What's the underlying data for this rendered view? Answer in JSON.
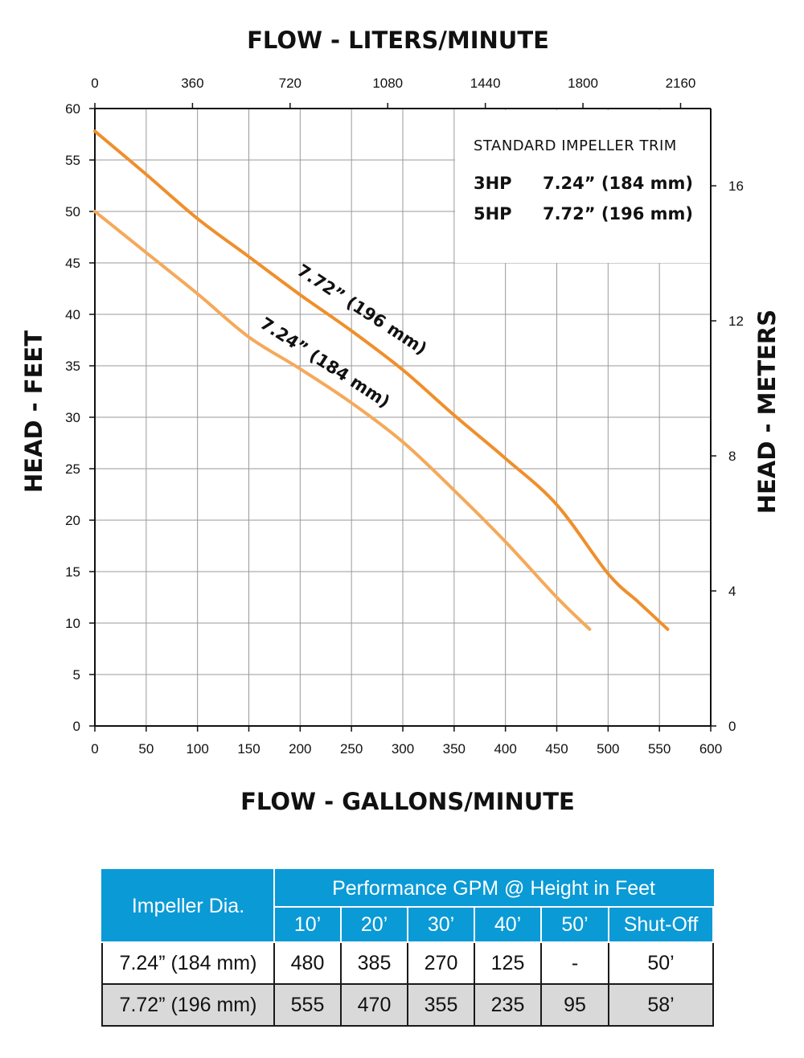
{
  "chart_data": {
    "type": "line",
    "title_top": "FLOW - LITERS/MINUTE",
    "xlabel": "FLOW - GALLONS/MINUTE",
    "ylabel_left": "HEAD - FEET",
    "ylabel_right": "HEAD - METERS",
    "xlim": [
      0,
      600
    ],
    "ylim": [
      0,
      60
    ],
    "x_ticks": [
      "0",
      "50",
      "100",
      "150",
      "200",
      "250",
      "300",
      "350",
      "400",
      "450",
      "500",
      "550",
      "600"
    ],
    "y_ticks": [
      "0",
      "5",
      "10",
      "15",
      "20",
      "25",
      "30",
      "35",
      "40",
      "45",
      "50",
      "55",
      "60"
    ],
    "top_ticks": [
      "0",
      "360",
      "720",
      "1080",
      "1440",
      "1800",
      "2160"
    ],
    "top_tick_values_lpm": [
      0,
      360,
      720,
      1080,
      1440,
      1800,
      2160
    ],
    "right_ticks": [
      "0",
      "4",
      "8",
      "12",
      "16"
    ],
    "right_tick_values_m": [
      0,
      4,
      8,
      12,
      16
    ],
    "grid": true,
    "legend": {
      "title": "STANDARD IMPELLER TRIM",
      "rows": [
        {
          "hp": "3HP",
          "trim": "7.24” (184 mm)"
        },
        {
          "hp": "5HP",
          "trim": "7.72” (196 mm)"
        }
      ]
    },
    "series": [
      {
        "name": "7.72” (196 mm)",
        "color": "#ef8f2c",
        "x": [
          0,
          50,
          100,
          150,
          200,
          250,
          300,
          350,
          400,
          450,
          500,
          530,
          558
        ],
        "y": [
          57.8,
          53.6,
          49.3,
          45.6,
          41.9,
          38.4,
          34.6,
          30.2,
          26.0,
          21.5,
          14.8,
          12.0,
          9.4
        ]
      },
      {
        "name": "7.24” (184 mm)",
        "color": "#f5a95a",
        "x": [
          0,
          50,
          100,
          150,
          200,
          250,
          300,
          350,
          400,
          450,
          482
        ],
        "y": [
          50.0,
          46.0,
          42.0,
          37.8,
          34.7,
          31.4,
          27.6,
          22.9,
          17.9,
          12.5,
          9.4
        ]
      }
    ]
  },
  "table": {
    "impeller_header": "Impeller Dia.",
    "performance_header": "Performance GPM @ Height in Feet",
    "columns": [
      "10’",
      "20’",
      "30’",
      "40’",
      "50’",
      "Shut-Off"
    ],
    "rows": [
      {
        "dia": "7.24” (184 mm)",
        "values": [
          "480",
          "385",
          "270",
          "125",
          "-",
          "50’"
        ]
      },
      {
        "dia": "7.72” (196 mm)",
        "values": [
          "555",
          "470",
          "355",
          "235",
          "95",
          "58’"
        ]
      }
    ]
  }
}
